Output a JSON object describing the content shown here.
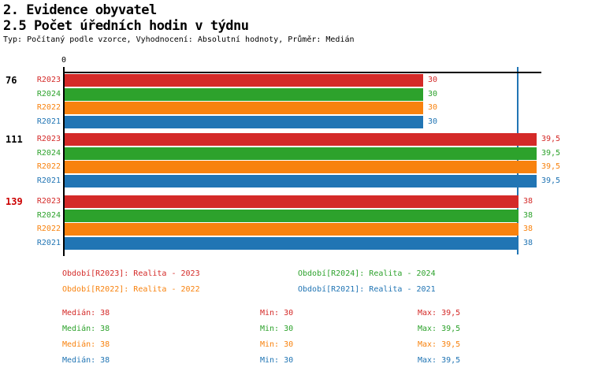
{
  "header": {
    "title_line1": "2. Evidence obyvatel",
    "title_line2": "2.5 Počet úředních hodin v týdnu",
    "subtitle": "Typ: Počítaný podle vzorce, Vyhodnocení: Absolutní hodnoty, Průměr: Medián"
  },
  "colors": {
    "series": {
      "R2023": "#d42a28",
      "R2024": "#2da22c",
      "R2022": "#f8820e",
      "R2021": "#2175b4"
    },
    "axis": "#000000",
    "median_line": "#2175b4",
    "group_label_default": "#000000",
    "group_label_highlight": "#cc0000"
  },
  "chart_data": {
    "type": "bar",
    "orientation": "horizontal",
    "title": "2.5 Počet úředních hodin v týdnu",
    "x_axis": {
      "min": 0,
      "max": 40,
      "tick_labels": [
        "0"
      ],
      "grid": false
    },
    "median_line_value": 38,
    "series_order": [
      "R2023",
      "R2024",
      "R2022",
      "R2021"
    ],
    "groups": [
      {
        "label": "76",
        "highlight": false,
        "bars": [
          {
            "series": "R2023",
            "value": 30,
            "display": "30"
          },
          {
            "series": "R2024",
            "value": 30,
            "display": "30"
          },
          {
            "series": "R2022",
            "value": 30,
            "display": "30"
          },
          {
            "series": "R2021",
            "value": 30,
            "display": "30"
          }
        ]
      },
      {
        "label": "111",
        "highlight": false,
        "bars": [
          {
            "series": "R2023",
            "value": 39.5,
            "display": "39,5"
          },
          {
            "series": "R2024",
            "value": 39.5,
            "display": "39,5"
          },
          {
            "series": "R2022",
            "value": 39.5,
            "display": "39,5"
          },
          {
            "series": "R2021",
            "value": 39.5,
            "display": "39,5"
          }
        ]
      },
      {
        "label": "139",
        "highlight": true,
        "bars": [
          {
            "series": "R2023",
            "value": 38,
            "display": "38"
          },
          {
            "series": "R2024",
            "value": 38,
            "display": "38"
          },
          {
            "series": "R2022",
            "value": 38,
            "display": "38"
          },
          {
            "series": "R2021",
            "value": 38,
            "display": "38"
          }
        ]
      }
    ]
  },
  "legend": {
    "rows": [
      [
        {
          "series": "R2023",
          "text": "Období[R2023]: Realita - 2023"
        },
        {
          "series": "R2024",
          "text": "Období[R2024]: Realita - 2024"
        }
      ],
      [
        {
          "series": "R2022",
          "text": "Období[R2022]: Realita - 2022"
        },
        {
          "series": "R2021",
          "text": "Období[R2021]: Realita - 2021"
        }
      ]
    ]
  },
  "stats": {
    "rows": [
      {
        "series": "R2023",
        "median": "Medián: 38",
        "min": "Min: 30",
        "max": "Max: 39,5"
      },
      {
        "series": "R2024",
        "median": "Medián: 38",
        "min": "Min: 30",
        "max": "Max: 39,5"
      },
      {
        "series": "R2022",
        "median": "Medián: 38",
        "min": "Min: 30",
        "max": "Max: 39,5"
      },
      {
        "series": "R2021",
        "median": "Medián: 38",
        "min": "Min: 30",
        "max": "Max: 39,5"
      }
    ]
  }
}
